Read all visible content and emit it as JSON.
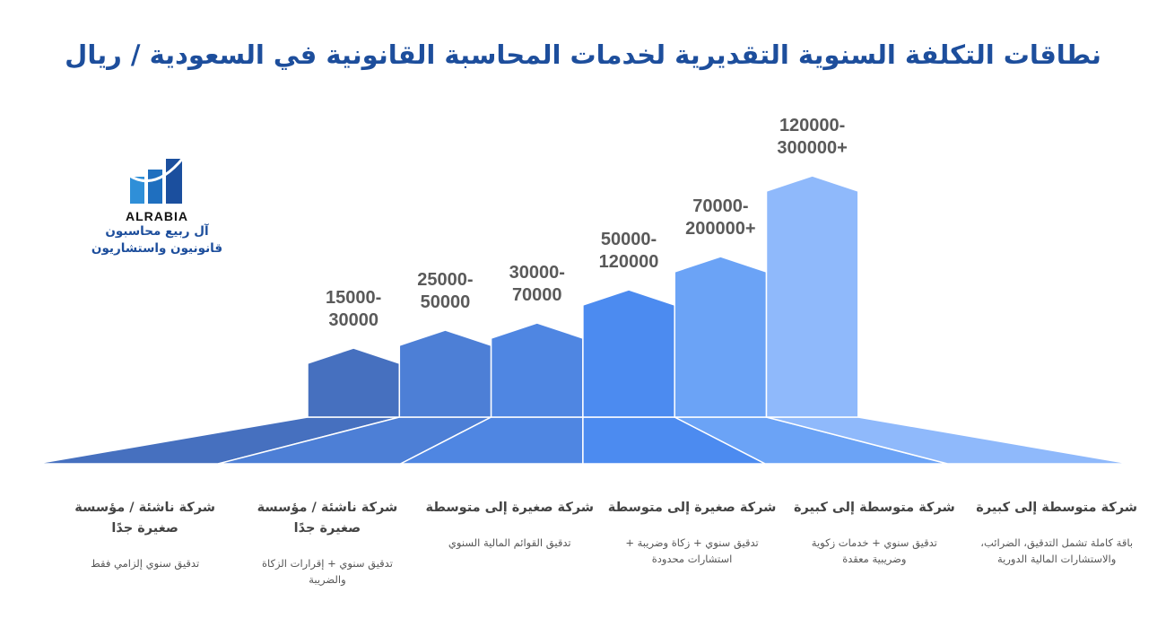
{
  "chart_data": {
    "type": "bar",
    "title": "نطاقات التكلفة السنوية التقديرية لخدمات المحاسبة القانونية في السعودية / ريال",
    "categories": [
      "شركة ناشئة / مؤسسة صغيرة جدًا",
      "شركة ناشئة / مؤسسة صغيرة جدًا",
      "شركة صغيرة إلى متوسطة",
      "شركة صغيرة إلى متوسطة",
      "شركة متوسطة إلى كبيرة",
      "شركة متوسطة إلى كبيرة"
    ],
    "descriptions": [
      "تدقيق سنوي إلزامي فقط",
      "تدقيق سنوي + إقرارات الزكاة والضريبة",
      "تدقيق القوائم المالية السنوي",
      "تدقيق سنوي + زكاة وضريبة + استشارات محدودة",
      "تدقيق سنوي + خدمات زكوية وضريبية معقدة",
      "باقة كاملة تشمل التدقيق، الضرائب، والاستشارات المالية الدورية"
    ],
    "series": [
      {
        "low": 15000,
        "high": 30000,
        "label_top": "15000-",
        "label_bottom": "30000"
      },
      {
        "low": 25000,
        "high": 50000,
        "label_top": "25000-",
        "label_bottom": "50000"
      },
      {
        "low": 30000,
        "high": 70000,
        "label_top": "30000-",
        "label_bottom": "70000"
      },
      {
        "low": 50000,
        "high": 120000,
        "label_top": "50000-",
        "label_bottom": "120000"
      },
      {
        "low": 70000,
        "high": 200000,
        "label_top": "70000-",
        "label_bottom": "200000+"
      },
      {
        "low": 120000,
        "high": 300000,
        "label_top": "120000-",
        "label_bottom": "300000+"
      }
    ],
    "colors": [
      "#4670bf",
      "#4d7fd6",
      "#4f86e2",
      "#4c8bf0",
      "#6ba3f6",
      "#8fb9fb"
    ],
    "xlabel": "",
    "ylabel": ""
  },
  "logo": {
    "name": "ALRABIA",
    "line1": "آل ربيع محاسبون",
    "line2": "قانونيون واستشاريون"
  }
}
